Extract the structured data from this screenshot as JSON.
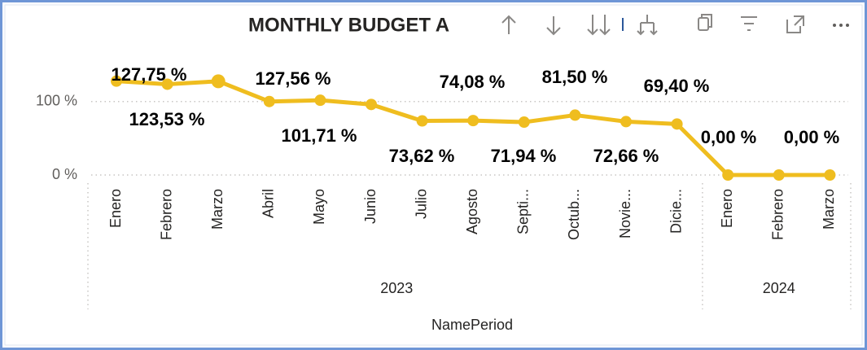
{
  "chart_data": {
    "type": "line",
    "title": "MONTHLY BUDGET A",
    "x_title": "NamePeriod",
    "category_groups": [
      {
        "name": "2023",
        "categories": [
          "Enero",
          "Febrero",
          "Marzo",
          "Abril",
          "Mayo",
          "Junio",
          "Julio",
          "Agosto",
          "Septi...",
          "Octub...",
          "Novie...",
          "Dicie..."
        ]
      },
      {
        "name": "2024",
        "categories": [
          "Enero",
          "Febrero",
          "Marzo"
        ]
      }
    ],
    "values": [
      127.75,
      123.53,
      127.56,
      100,
      101.71,
      96,
      73.62,
      74.08,
      71.94,
      81.5,
      72.66,
      69.4,
      0,
      0,
      0
    ],
    "value_labels": [
      "127,75 %",
      "123,53 %",
      "127,56 %",
      null,
      "101,71 %",
      null,
      "73,62 %",
      "74,08 %",
      "71,94 %",
      "81,50 %",
      "72,66 %",
      "69,40 %",
      "0,00 %",
      "0,00 %",
      null
    ],
    "color": "#efbd1f",
    "ylim": [
      0,
      144
    ],
    "yticks": [
      {
        "value": 0,
        "label": "0 %"
      },
      {
        "value": 100,
        "label": "100 %"
      }
    ],
    "grid": true
  }
}
